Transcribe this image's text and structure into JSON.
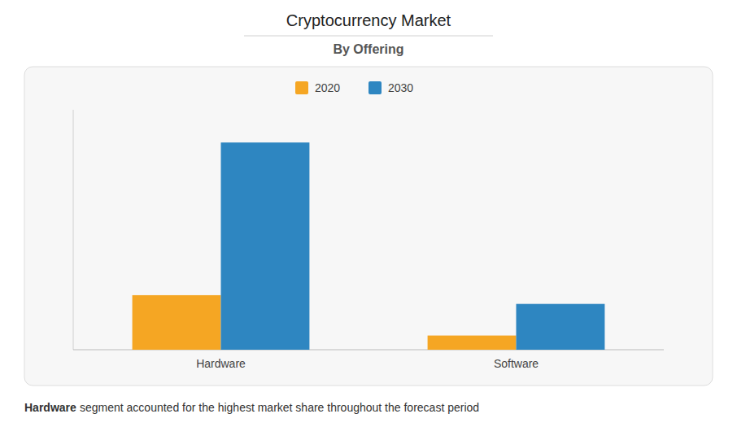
{
  "chart_data": {
    "type": "bar",
    "title": "Cryptocurrency Market",
    "subtitle": "By Offering",
    "categories": [
      "Hardware",
      "Software"
    ],
    "series": [
      {
        "name": "2020",
        "color": "#f5a623",
        "values": [
          2.5,
          0.65
        ]
      },
      {
        "name": "2030",
        "color": "#2e86c1",
        "values": [
          9.5,
          2.1
        ]
      }
    ],
    "ylim": [
      0,
      11
    ],
    "legend": "top",
    "grid": false,
    "tick_labels": "x",
    "annotations": [
      "Hardware",
      "segment accounted for the highest market share throughout the forecast period"
    ]
  }
}
